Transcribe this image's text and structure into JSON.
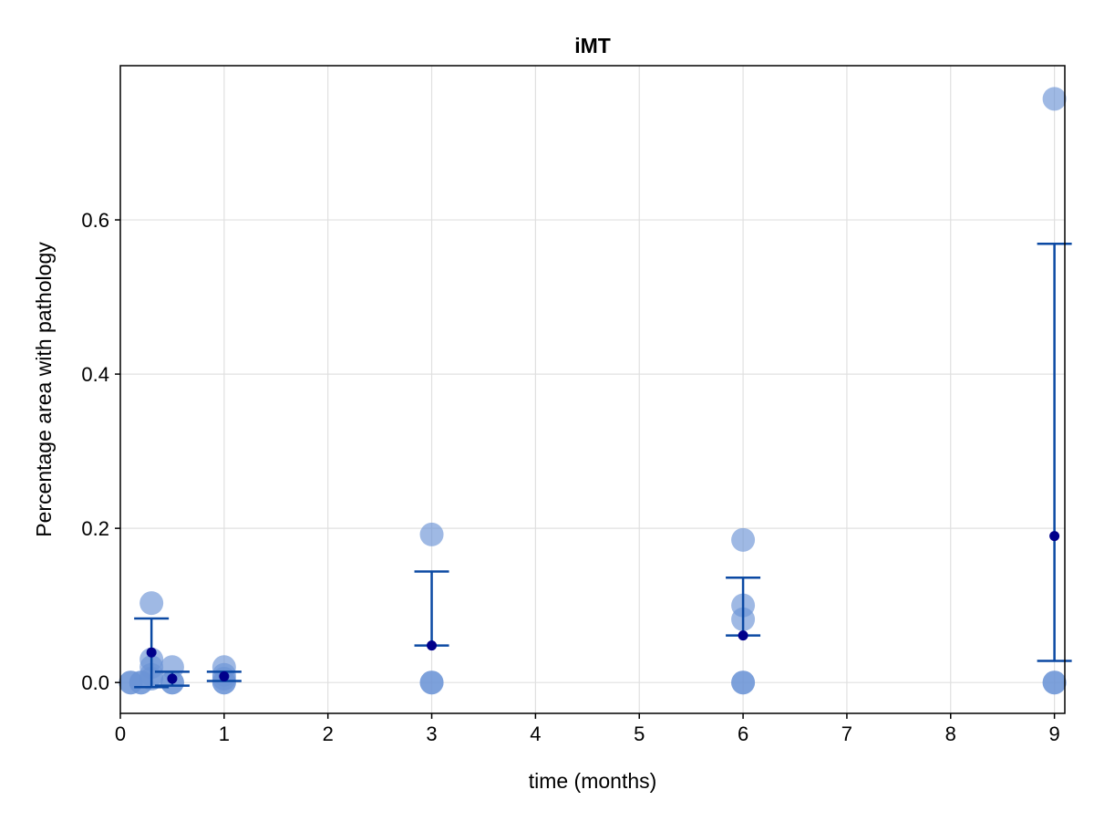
{
  "chart_data": {
    "type": "scatter",
    "title": "iMT",
    "xlabel": "time (months)",
    "ylabel": "Percentage area with pathology",
    "xlim": [
      0,
      9.1
    ],
    "ylim": [
      -0.04,
      0.8
    ],
    "xticks": [
      0,
      1,
      2,
      3,
      4,
      5,
      6,
      7,
      8,
      9
    ],
    "xtick_labels": [
      "0",
      "1",
      "2",
      "3",
      "4",
      "5",
      "6",
      "7",
      "8",
      "9"
    ],
    "yticks": [
      0.0,
      0.2,
      0.4,
      0.6
    ],
    "ytick_labels": [
      "0.0",
      "0.2",
      "0.4",
      "0.6"
    ],
    "grid": true,
    "colors": {
      "points": "#6b93d6",
      "mean_marker": "#00008b",
      "error_bar": "#0b49a3",
      "grid": "#e0e0e0",
      "frame": "#000000"
    },
    "series": [
      {
        "kind": "individual_points",
        "points": [
          {
            "x": 0.1,
            "y": 0.0
          },
          {
            "x": 0.1,
            "y": 0.0
          },
          {
            "x": 0.2,
            "y": 0.0
          },
          {
            "x": 0.2,
            "y": 0.0
          },
          {
            "x": 0.3,
            "y": 0.103
          },
          {
            "x": 0.3,
            "y": 0.03
          },
          {
            "x": 0.3,
            "y": 0.02
          },
          {
            "x": 0.3,
            "y": 0.01
          },
          {
            "x": 0.3,
            "y": 0.005
          },
          {
            "x": 0.5,
            "y": 0.02
          },
          {
            "x": 0.5,
            "y": 0.0
          },
          {
            "x": 0.5,
            "y": 0.0
          },
          {
            "x": 1,
            "y": 0.02
          },
          {
            "x": 1,
            "y": 0.01
          },
          {
            "x": 1,
            "y": 0.005
          },
          {
            "x": 1,
            "y": 0.0
          },
          {
            "x": 1,
            "y": 0.0
          },
          {
            "x": 3,
            "y": 0.192
          },
          {
            "x": 3,
            "y": 0.0
          },
          {
            "x": 3,
            "y": 0.0
          },
          {
            "x": 6,
            "y": 0.185
          },
          {
            "x": 6,
            "y": 0.1
          },
          {
            "x": 6,
            "y": 0.082
          },
          {
            "x": 6,
            "y": 0.0
          },
          {
            "x": 6,
            "y": 0.0
          },
          {
            "x": 9,
            "y": 0.757
          },
          {
            "x": 9,
            "y": 0.0
          },
          {
            "x": 9,
            "y": 0.0
          }
        ]
      },
      {
        "kind": "mean_with_error",
        "points": [
          {
            "x": 0.3,
            "mean": 0.039,
            "low": -0.006,
            "high": 0.083
          },
          {
            "x": 0.5,
            "mean": 0.005,
            "low": -0.004,
            "high": 0.014
          },
          {
            "x": 1,
            "mean": 0.008,
            "low": 0.002,
            "high": 0.014
          },
          {
            "x": 3,
            "mean": 0.048,
            "low": 0.048,
            "high": 0.144
          },
          {
            "x": 6,
            "mean": 0.061,
            "low": 0.061,
            "high": 0.136
          },
          {
            "x": 9,
            "mean": 0.19,
            "low": 0.028,
            "high": 0.569
          }
        ]
      }
    ]
  }
}
